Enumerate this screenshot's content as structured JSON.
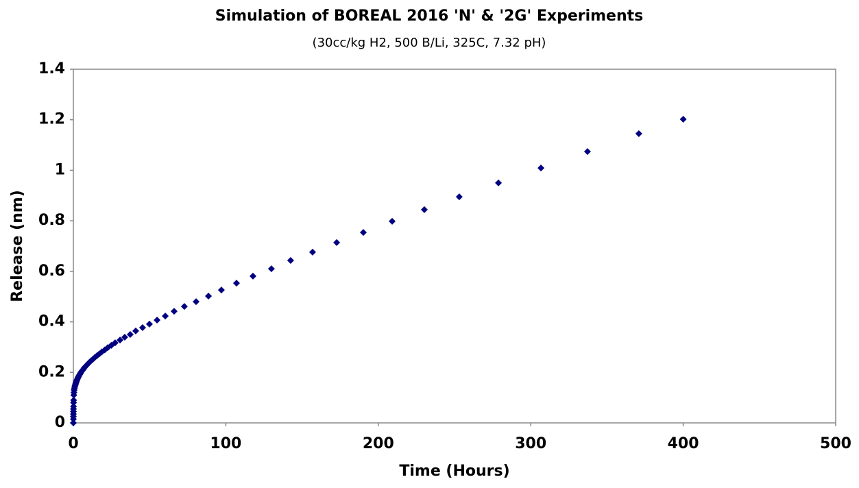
{
  "chart_data": {
    "type": "scatter",
    "title": "Simulation of BOREAL 2016 'N' & '2G' Experiments",
    "subtitle": "(30cc/kg H2, 500 B/Li, 325C, 7.32 pH)",
    "x_label": "Time (Hours)",
    "y_label": "Release (nm)",
    "color": "#000080",
    "marker": "diamond",
    "grid": false,
    "xlim": [
      0,
      500
    ],
    "xticks": [
      0,
      100,
      200,
      300,
      400,
      500
    ],
    "ylim": [
      0,
      1.4
    ],
    "yticks": [
      0,
      0.2,
      0.4,
      0.6,
      0.8,
      1,
      1.2,
      1.4
    ],
    "x": [
      400,
      370.9,
      337.2,
      306.7,
      278.8,
      253.1,
      230.2,
      209.1,
      190.2,
      172.7,
      156.9,
      142.5,
      129.9,
      117.8,
      107,
      97.1,
      88.6,
      80.5,
      72.8,
      66.1,
      60.3,
      54.9,
      49.9,
      45.4,
      40.9,
      37.3,
      33.7,
      30.6,
      27.4,
      24.9,
      22.6,
      20.6,
      18.7,
      17,
      15.5,
      14.1,
      12.8,
      11.6,
      10.6,
      9.6,
      8.7,
      7.9,
      7.2,
      6.6,
      6,
      5.4,
      4.9,
      4.5,
      4.1,
      3.7,
      3.4,
      3.1,
      2.8,
      2.5,
      2.3,
      2.1,
      1.9,
      1.7,
      1.5,
      1.3,
      1.1,
      0.9,
      0.7,
      0.5,
      0.4,
      0.3,
      0.2,
      0.15,
      0.1,
      0.07,
      0.05,
      0.03,
      0.02,
      0.01,
      0
    ],
    "values": [
      1.202,
      1.145,
      1.074,
      1.009,
      0.95,
      0.895,
      0.844,
      0.798,
      0.754,
      0.714,
      0.676,
      0.643,
      0.61,
      0.581,
      0.553,
      0.526,
      0.502,
      0.48,
      0.461,
      0.442,
      0.423,
      0.407,
      0.391,
      0.377,
      0.364,
      0.35,
      0.339,
      0.328,
      0.317,
      0.307,
      0.298,
      0.289,
      0.281,
      0.273,
      0.266,
      0.259,
      0.252,
      0.246,
      0.24,
      0.234,
      0.228,
      0.223,
      0.218,
      0.213,
      0.208,
      0.204,
      0.199,
      0.195,
      0.191,
      0.187,
      0.183,
      0.18,
      0.176,
      0.172,
      0.169,
      0.166,
      0.162,
      0.159,
      0.155,
      0.151,
      0.147,
      0.142,
      0.137,
      0.13,
      0.12,
      0.11,
      0.09,
      0.08,
      0.065,
      0.055,
      0.045,
      0.035,
      0.025,
      0.015,
      0
    ]
  }
}
